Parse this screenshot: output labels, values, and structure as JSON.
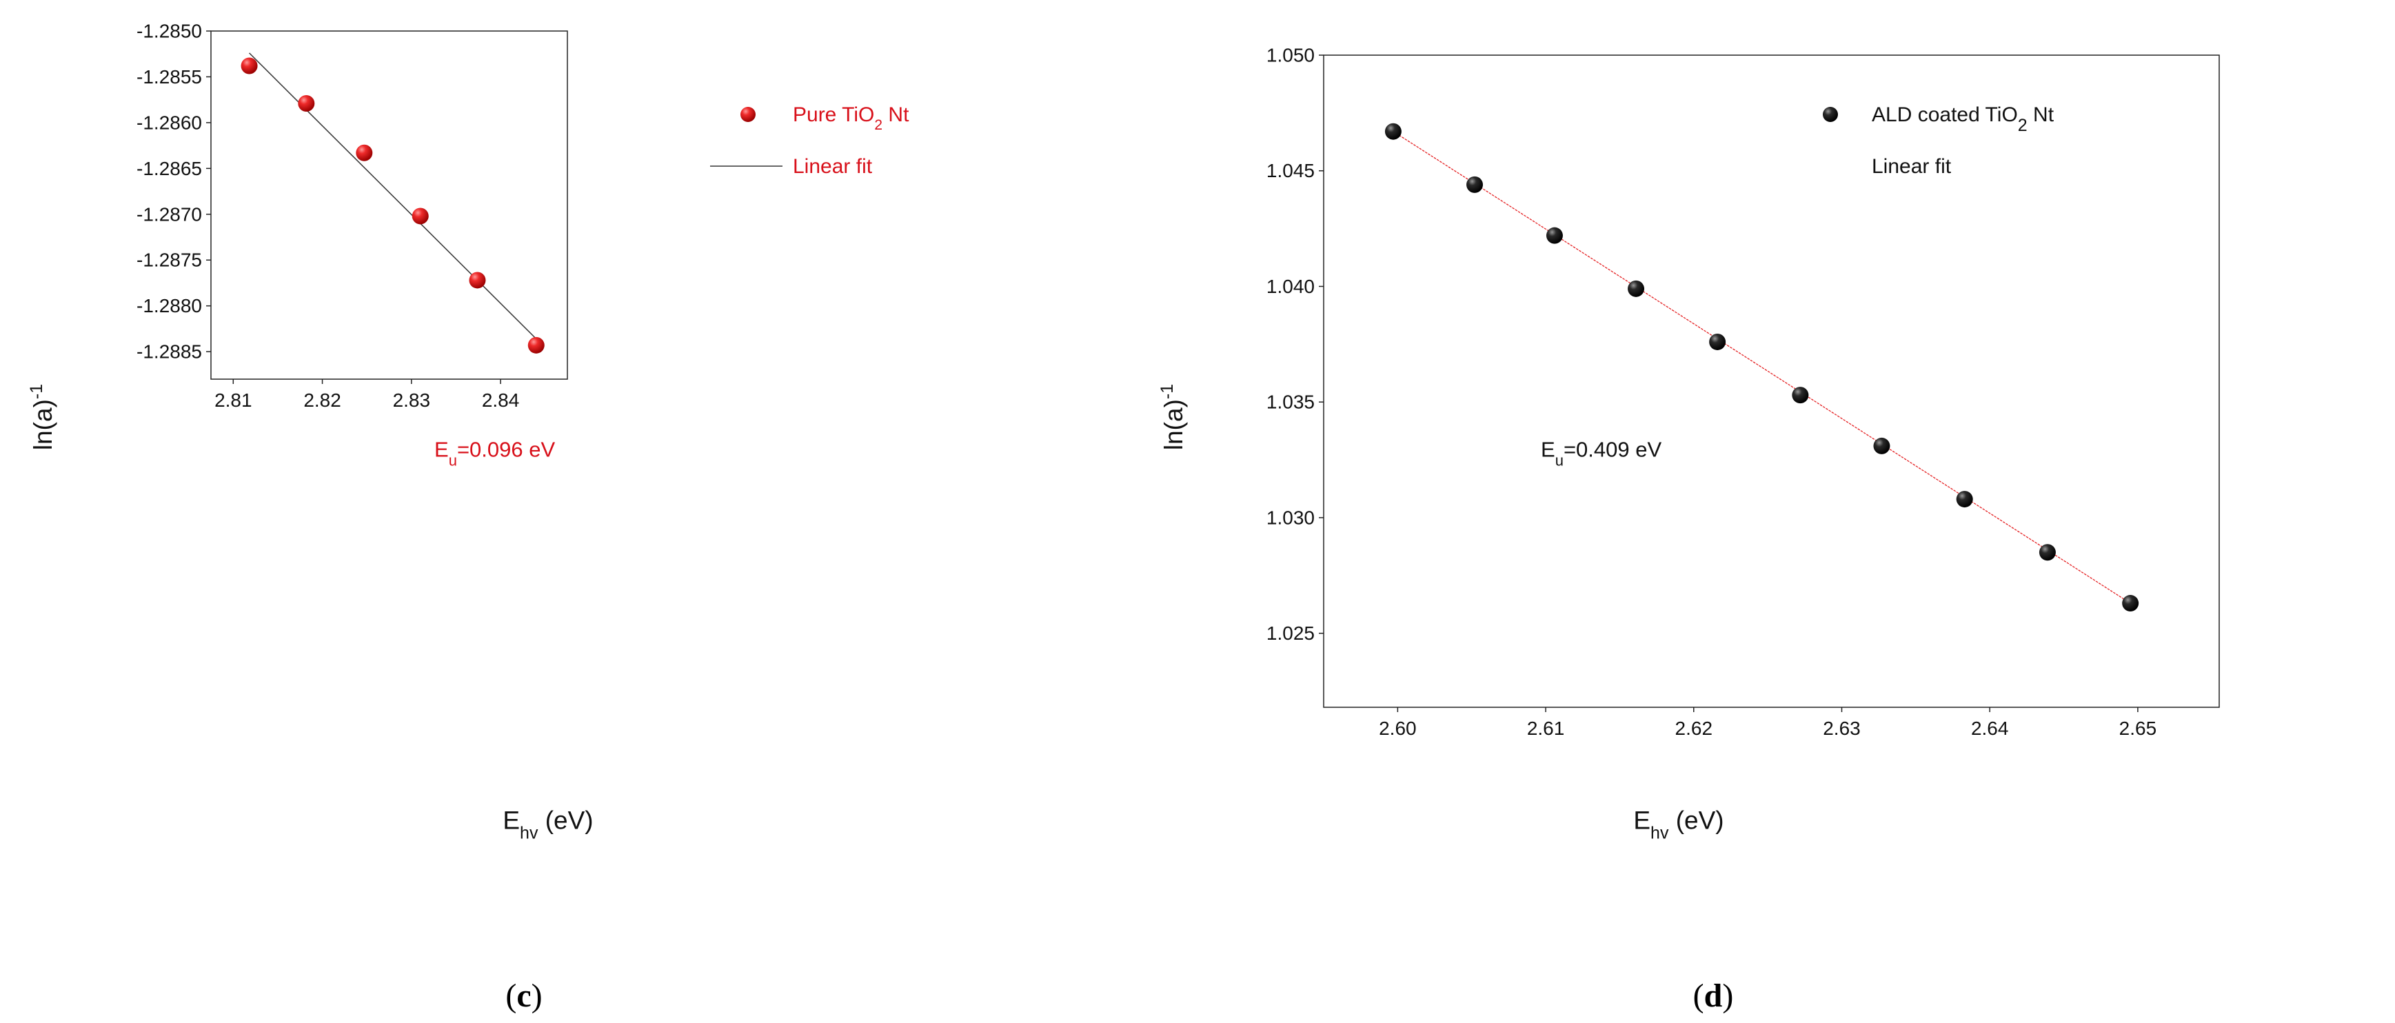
{
  "chart_data": [
    {
      "type": "scatter",
      "panel_label": "(c)",
      "xlabel": "E",
      "xlabel_sub": "hv",
      "xlabel_unit": " (eV)",
      "ylabel": "ln(a)",
      "ylabel_sup": "-1",
      "xlim": [
        2.8075,
        2.8475
      ],
      "ylim": [
        -1.2888,
        -1.285
      ],
      "xticks": [
        2.81,
        2.82,
        2.83,
        2.84
      ],
      "xtick_labels": [
        "2.81",
        "2.82",
        "2.83",
        "2.84"
      ],
      "yticks": [
        -1.285,
        -1.2855,
        -1.286,
        -1.2865,
        -1.287,
        -1.2875,
        -1.288,
        -1.2885
      ],
      "ytick_labels": [
        "-1.2850",
        "-1.2855",
        "-1.2860",
        "-1.2865",
        "-1.2870",
        "-1.2875",
        "-1.2880",
        "-1.2885"
      ],
      "marker_color": "#e41a1c",
      "fit_color": "#333333",
      "series": [
        {
          "name": "Pure TiO2 Nt",
          "x": [
            2.8118,
            2.8182,
            2.8247,
            2.831,
            2.8374,
            2.844
          ],
          "y": [
            -1.28538,
            -1.28579,
            -1.28633,
            -1.28702,
            -1.28772,
            -1.28843
          ]
        }
      ],
      "fit": {
        "name": "Linear fit",
        "x": [
          2.8118,
          2.844
        ],
        "y": [
          -1.28524,
          -1.28836
        ]
      },
      "legend": {
        "points_prefix": "Pure TiO",
        "points_sub": "2",
        "points_suffix": " Nt",
        "fit_label": "Linear fit"
      },
      "annotation": {
        "main": "E",
        "sub": "u",
        "value": "=0.096 eV"
      }
    },
    {
      "type": "scatter",
      "panel_label": "(d)",
      "xlabel": "E",
      "xlabel_sub": "hv",
      "xlabel_unit": " (eV)",
      "ylabel": "ln(a)",
      "ylabel_sup": "-1",
      "xlim": [
        2.595,
        2.6555
      ],
      "ylim": [
        1.0218,
        1.05
      ],
      "xticks": [
        2.6,
        2.61,
        2.62,
        2.63,
        2.64,
        2.65
      ],
      "xtick_labels": [
        "2.60",
        "2.61",
        "2.62",
        "2.63",
        "2.64",
        "2.65"
      ],
      "yticks": [
        1.025,
        1.03,
        1.035,
        1.04,
        1.045,
        1.05
      ],
      "ytick_labels": [
        "1.025",
        "1.030",
        "1.035",
        "1.040",
        "1.045",
        "1.050"
      ],
      "marker_color": "#1a1a1a",
      "fit_color": "#e41a1c",
      "series": [
        {
          "name": "ALD coated TiO2 Nt",
          "x": [
            2.5997,
            2.6052,
            2.6106,
            2.6161,
            2.6216,
            2.6272,
            2.6327,
            2.6383,
            2.6439,
            2.6495
          ],
          "y": [
            1.0467,
            1.0444,
            1.0422,
            1.0399,
            1.0376,
            1.0353,
            1.0331,
            1.0308,
            1.0285,
            1.0263
          ]
        }
      ],
      "fit": {
        "name": "Linear fit",
        "x": [
          2.5997,
          2.6495
        ],
        "y": [
          1.0467,
          1.0263
        ]
      },
      "legend": {
        "points_prefix": "ALD coated TiO",
        "points_sub": "2",
        "points_suffix": " Nt",
        "fit_label": "Linear fit"
      },
      "annotation": {
        "main": "E",
        "sub": "u",
        "value": "=0.409 eV"
      }
    }
  ]
}
